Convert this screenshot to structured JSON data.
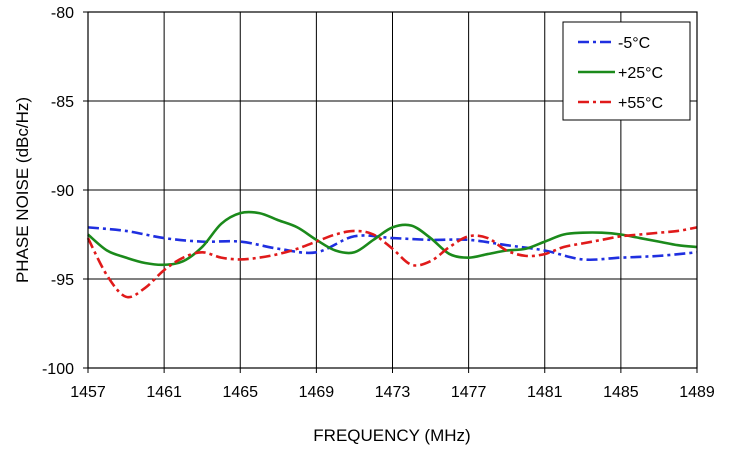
{
  "chart_data": {
    "type": "line",
    "xlabel": "FREQUENCY (MHz)",
    "ylabel": "PHASE NOISE  (dBc/Hz)",
    "xlim": [
      1457,
      1489
    ],
    "ylim": [
      -100,
      -80
    ],
    "x_ticks": [
      1457,
      1461,
      1465,
      1469,
      1473,
      1477,
      1481,
      1485,
      1489
    ],
    "y_ticks": [
      -80,
      -85,
      -90,
      -95,
      -100
    ],
    "x_tick_labels": [
      "1457",
      "1461",
      "1465",
      "1469",
      "1473",
      "1477",
      "1481",
      "1485",
      "1489"
    ],
    "y_tick_labels": [
      "-80",
      "-85",
      "-90",
      "-95",
      "-100"
    ],
    "grid": true,
    "legend_position": "top-right",
    "series": [
      {
        "name": "-5°C",
        "color": "#1f2fe0",
        "dash": "dash-dot",
        "points": [
          [
            1457,
            -92.1
          ],
          [
            1459,
            -92.3
          ],
          [
            1461,
            -92.7
          ],
          [
            1463,
            -92.9
          ],
          [
            1465,
            -92.9
          ],
          [
            1467,
            -93.3
          ],
          [
            1469,
            -93.5
          ],
          [
            1471,
            -92.6
          ],
          [
            1473,
            -92.7
          ],
          [
            1475,
            -92.8
          ],
          [
            1477,
            -92.8
          ],
          [
            1479,
            -93.1
          ],
          [
            1481,
            -93.4
          ],
          [
            1483,
            -93.9
          ],
          [
            1485,
            -93.8
          ],
          [
            1487,
            -93.7
          ],
          [
            1489,
            -93.5
          ]
        ]
      },
      {
        "name": "+25°C",
        "color": "#1b8a1b",
        "dash": "solid",
        "points": [
          [
            1457,
            -92.5
          ],
          [
            1458,
            -93.4
          ],
          [
            1459,
            -93.8
          ],
          [
            1460,
            -94.1
          ],
          [
            1461,
            -94.2
          ],
          [
            1462,
            -94.0
          ],
          [
            1463,
            -93.2
          ],
          [
            1464,
            -91.9
          ],
          [
            1465,
            -91.3
          ],
          [
            1466,
            -91.3
          ],
          [
            1467,
            -91.7
          ],
          [
            1468,
            -92.1
          ],
          [
            1469,
            -92.8
          ],
          [
            1470,
            -93.4
          ],
          [
            1471,
            -93.5
          ],
          [
            1472,
            -92.8
          ],
          [
            1473,
            -92.1
          ],
          [
            1474,
            -92.0
          ],
          [
            1475,
            -92.7
          ],
          [
            1476,
            -93.6
          ],
          [
            1477,
            -93.8
          ],
          [
            1478,
            -93.6
          ],
          [
            1479,
            -93.4
          ],
          [
            1480,
            -93.3
          ],
          [
            1481,
            -92.9
          ],
          [
            1482,
            -92.5
          ],
          [
            1483,
            -92.4
          ],
          [
            1484,
            -92.4
          ],
          [
            1485,
            -92.5
          ],
          [
            1486,
            -92.7
          ],
          [
            1487,
            -92.9
          ],
          [
            1488,
            -93.1
          ],
          [
            1489,
            -93.2
          ]
        ]
      },
      {
        "name": "+55°C",
        "color": "#e01a1a",
        "dash": "dash-dot",
        "points": [
          [
            1457,
            -92.7
          ],
          [
            1458,
            -94.8
          ],
          [
            1459,
            -96.0
          ],
          [
            1460,
            -95.5
          ],
          [
            1461,
            -94.5
          ],
          [
            1462,
            -93.8
          ],
          [
            1463,
            -93.5
          ],
          [
            1464,
            -93.8
          ],
          [
            1465,
            -93.9
          ],
          [
            1466,
            -93.8
          ],
          [
            1467,
            -93.6
          ],
          [
            1468,
            -93.3
          ],
          [
            1469,
            -92.9
          ],
          [
            1470,
            -92.5
          ],
          [
            1471,
            -92.3
          ],
          [
            1472,
            -92.5
          ],
          [
            1473,
            -93.3
          ],
          [
            1474,
            -94.2
          ],
          [
            1475,
            -94.0
          ],
          [
            1476,
            -93.2
          ],
          [
            1477,
            -92.6
          ],
          [
            1478,
            -92.7
          ],
          [
            1479,
            -93.4
          ],
          [
            1480,
            -93.7
          ],
          [
            1481,
            -93.6
          ],
          [
            1482,
            -93.2
          ],
          [
            1483,
            -93.0
          ],
          [
            1484,
            -92.8
          ],
          [
            1485,
            -92.6
          ],
          [
            1486,
            -92.5
          ],
          [
            1487,
            -92.4
          ],
          [
            1488,
            -92.3
          ],
          [
            1489,
            -92.1
          ]
        ]
      }
    ]
  }
}
